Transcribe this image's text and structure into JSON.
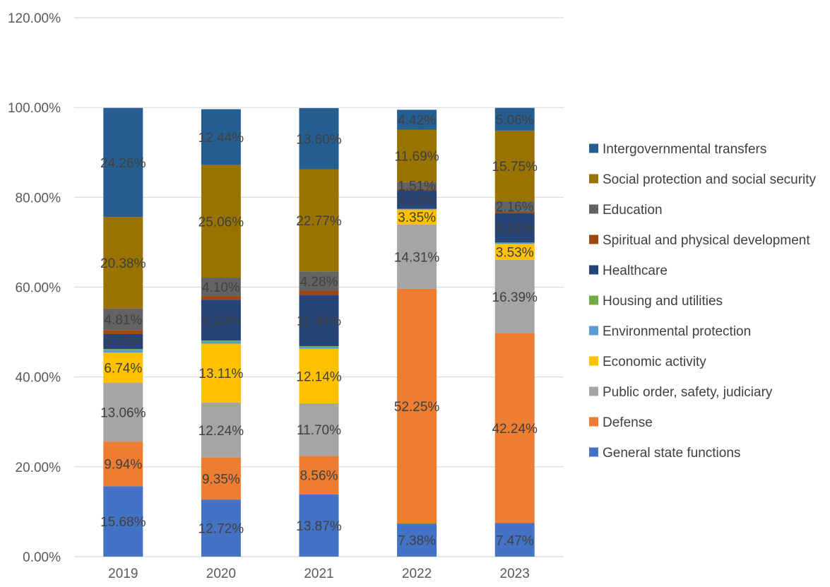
{
  "chart_data": {
    "type": "bar",
    "stacked": true,
    "categories": [
      "2019",
      "2020",
      "2021",
      "2022",
      "2023"
    ],
    "ylim": [
      0,
      120
    ],
    "y_ticks": [
      "0.00%",
      "20.00%",
      "40.00%",
      "60.00%",
      "80.00%",
      "100.00%",
      "120.00%"
    ],
    "y_tick_values": [
      0,
      20,
      40,
      60,
      80,
      100,
      120
    ],
    "grid": true,
    "legend_position": "right",
    "series": [
      {
        "name": "General state functions",
        "color": "#4472C4",
        "values": [
          15.68,
          12.72,
          13.87,
          7.38,
          7.47
        ],
        "labels": [
          "15.68%",
          "12.72%",
          "13.87%",
          "7.38%",
          "7.47%"
        ]
      },
      {
        "name": "Defense",
        "color": "#ED7D31",
        "values": [
          9.94,
          9.35,
          8.56,
          52.25,
          42.24
        ],
        "labels": [
          "9.94%",
          "9.35%",
          "8.56%",
          "52.25%",
          "42.24%"
        ]
      },
      {
        "name": "Public order, safety, judiciary",
        "color": "#A5A5A5",
        "values": [
          13.06,
          12.24,
          11.7,
          14.31,
          16.39
        ],
        "labels": [
          "13.06%",
          "12.24%",
          "11.70%",
          "14.31%",
          "16.39%"
        ]
      },
      {
        "name": "Economic activity",
        "color": "#FFC000",
        "values": [
          6.74,
          13.11,
          12.14,
          3.35,
          3.53
        ],
        "labels": [
          "6.74%",
          "13.11%",
          "12.14%",
          "3.35%",
          "3.53%"
        ]
      },
      {
        "name": "Environmental protection",
        "color": "#5B9BD5",
        "values": [
          0.6,
          0.6,
          0.5,
          0.1,
          0.2
        ],
        "labels": [
          "",
          "",
          "",
          "",
          ""
        ]
      },
      {
        "name": "Housing and utilities",
        "color": "#70AD47",
        "values": [
          0.2,
          0.1,
          0.1,
          0.05,
          0.1
        ],
        "labels": [
          "",
          "",
          "",
          "",
          ""
        ]
      },
      {
        "name": "Healthcare",
        "color": "#264478",
        "values": [
          3.33,
          9.1,
          11.44,
          4.13,
          6.51
        ],
        "labels": [
          "3.33%",
          "9.10%",
          "11.44%",
          "4.13%",
          "6.51%"
        ]
      },
      {
        "name": "Spiritual and physical development",
        "color": "#9E480E",
        "values": [
          0.9,
          0.8,
          0.9,
          0.3,
          0.5
        ],
        "labels": [
          "",
          "",
          "",
          "",
          ""
        ]
      },
      {
        "name": "Education",
        "color": "#636363",
        "values": [
          4.81,
          4.1,
          4.28,
          1.51,
          2.16
        ],
        "labels": [
          "4.81%",
          "4.10%",
          "4.28%",
          "1.51%",
          "2.16%"
        ]
      },
      {
        "name": "Social protection and social security",
        "color": "#997300",
        "values": [
          20.38,
          25.06,
          22.77,
          11.69,
          15.75
        ],
        "labels": [
          "20.38%",
          "25.06%",
          "22.77%",
          "11.69%",
          "15.75%"
        ]
      },
      {
        "name": "Intergovernmental transfers",
        "color": "#255E91",
        "values": [
          24.26,
          12.44,
          13.6,
          4.42,
          5.06
        ],
        "labels": [
          "24.26%",
          "12.44%",
          "13.60%",
          "4.42%",
          "5.06%"
        ]
      }
    ]
  }
}
